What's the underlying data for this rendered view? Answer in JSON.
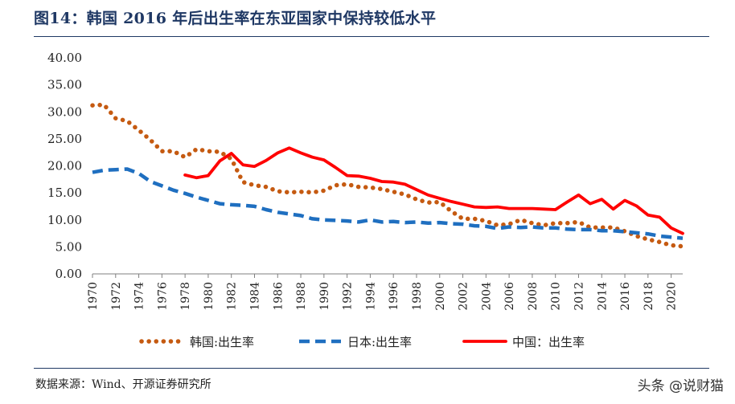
{
  "title": "图14：韩国 2016 年后出生率在东亚国家中保持较低水平",
  "source": "数据来源：Wind、开源证券研究所",
  "watermark": "头条 @说财猫",
  "chart_data": {
    "type": "line",
    "title": "",
    "xlabel": "",
    "ylabel": "",
    "ylim": [
      0,
      40
    ],
    "yticks": [
      "0.00",
      "5.00",
      "10.00",
      "15.00",
      "20.00",
      "25.00",
      "30.00",
      "35.00",
      "40.00"
    ],
    "xlim": [
      1970,
      2021
    ],
    "xticks": [
      "1970",
      "1972",
      "1974",
      "1976",
      "1978",
      "1980",
      "1982",
      "1984",
      "1986",
      "1988",
      "1990",
      "1992",
      "1994",
      "1996",
      "1998",
      "2000",
      "2002",
      "2004",
      "2006",
      "2008",
      "2010",
      "2012",
      "2014",
      "2016",
      "2018",
      "2020"
    ],
    "grid": false,
    "legend_position": "bottom",
    "series": [
      {
        "name": "韩国:出生率",
        "color": "#c55a11",
        "style": "dotted",
        "x": [
          1970,
          1971,
          1972,
          1973,
          1974,
          1975,
          1976,
          1977,
          1978,
          1979,
          1980,
          1981,
          1982,
          1983,
          1984,
          1985,
          1986,
          1987,
          1988,
          1989,
          1990,
          1991,
          1992,
          1993,
          1994,
          1995,
          1996,
          1997,
          1998,
          1999,
          2000,
          2001,
          2002,
          2003,
          2004,
          2005,
          2006,
          2007,
          2008,
          2009,
          2010,
          2011,
          2012,
          2013,
          2014,
          2015,
          2016,
          2017,
          2018,
          2019,
          2020,
          2021
        ],
        "values": [
          31.2,
          31.3,
          28.8,
          28.3,
          26.6,
          24.8,
          22.7,
          22.7,
          21.6,
          23.1,
          22.7,
          22.6,
          21.3,
          17.0,
          16.4,
          16.1,
          15.3,
          15.1,
          15.2,
          15.1,
          15.4,
          16.4,
          16.6,
          16.1,
          16.0,
          15.7,
          15.2,
          14.7,
          13.8,
          13.2,
          13.3,
          11.6,
          10.2,
          10.2,
          9.8,
          9.0,
          9.2,
          10.0,
          9.4,
          9.0,
          9.4,
          9.4,
          9.6,
          8.6,
          8.6,
          8.6,
          7.9,
          7.0,
          6.4,
          5.9,
          5.3,
          5.1
        ]
      },
      {
        "name": "日本:出生率",
        "color": "#1f6fc0",
        "style": "dashed",
        "x": [
          1970,
          1971,
          1972,
          1973,
          1974,
          1975,
          1976,
          1977,
          1978,
          1979,
          1980,
          1981,
          1982,
          1983,
          1984,
          1985,
          1986,
          1987,
          1988,
          1989,
          1990,
          1991,
          1992,
          1993,
          1994,
          1995,
          1996,
          1997,
          1998,
          1999,
          2000,
          2001,
          2002,
          2003,
          2004,
          2005,
          2006,
          2007,
          2008,
          2009,
          2010,
          2011,
          2012,
          2013,
          2014,
          2015,
          2016,
          2017,
          2018,
          2019,
          2020,
          2021
        ],
        "values": [
          18.8,
          19.2,
          19.3,
          19.4,
          18.6,
          17.1,
          16.3,
          15.5,
          14.9,
          14.2,
          13.6,
          13.0,
          12.8,
          12.7,
          12.5,
          11.9,
          11.4,
          11.1,
          10.8,
          10.2,
          10.0,
          9.9,
          9.8,
          9.6,
          10.0,
          9.6,
          9.7,
          9.5,
          9.6,
          9.4,
          9.5,
          9.3,
          9.2,
          8.9,
          8.8,
          8.4,
          8.7,
          8.6,
          8.7,
          8.5,
          8.5,
          8.3,
          8.2,
          8.2,
          8.0,
          8.0,
          7.8,
          7.6,
          7.4,
          7.0,
          6.8,
          6.6
        ]
      },
      {
        "name": "中国：出生率",
        "color": "#ff0000",
        "style": "solid",
        "x": [
          1978,
          1979,
          1980,
          1981,
          1982,
          1983,
          1984,
          1985,
          1986,
          1987,
          1988,
          1989,
          1990,
          1991,
          1992,
          1993,
          1994,
          1995,
          1996,
          1997,
          1998,
          1999,
          2000,
          2001,
          2002,
          2003,
          2004,
          2005,
          2006,
          2007,
          2008,
          2009,
          2010,
          2011,
          2012,
          2013,
          2014,
          2015,
          2016,
          2017,
          2018,
          2019,
          2020,
          2021
        ],
        "values": [
          18.3,
          17.8,
          18.2,
          20.9,
          22.3,
          20.2,
          19.9,
          21.0,
          22.4,
          23.3,
          22.4,
          21.6,
          21.1,
          19.7,
          18.2,
          18.1,
          17.7,
          17.1,
          17.0,
          16.6,
          15.6,
          14.6,
          14.0,
          13.4,
          12.9,
          12.4,
          12.3,
          12.4,
          12.1,
          12.1,
          12.1,
          12.0,
          11.9,
          13.3,
          14.6,
          13.0,
          13.8,
          12.0,
          13.6,
          12.6,
          10.9,
          10.5,
          8.5,
          7.5
        ]
      }
    ]
  }
}
